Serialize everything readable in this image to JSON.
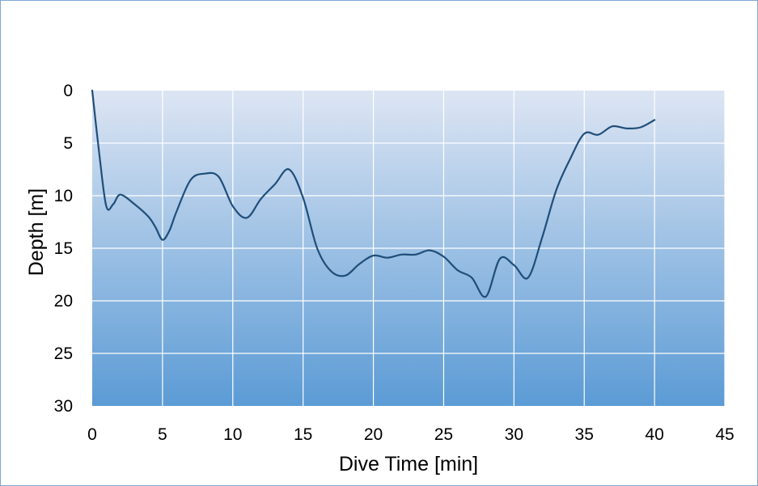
{
  "chart_data": {
    "type": "line",
    "title": "",
    "xlabel": "Dive Time [min]",
    "ylabel": "Depth [m]",
    "xlim": [
      0,
      45
    ],
    "ylim": [
      0,
      30
    ],
    "y_inverted": true,
    "x_ticks": [
      "0",
      "5",
      "10",
      "15",
      "20",
      "25",
      "30",
      "35",
      "40",
      "45"
    ],
    "y_ticks": [
      "0",
      "5",
      "10",
      "15",
      "20",
      "25",
      "30"
    ],
    "grid": true,
    "legend": "none",
    "background": "vertical gradient, light blue at top to medium blue at bottom",
    "colors": {
      "line": "#1f4e79",
      "grid": "#ffffff",
      "gradient_top": "#dde5f3",
      "gradient_bottom": "#5b9bd5",
      "frame_border": "#7fa7d3"
    },
    "series": [
      {
        "x": [
          0,
          0.5,
          1,
          1.5,
          2,
          3,
          4,
          4.5,
          5,
          5.5,
          6,
          7,
          8,
          9,
          10,
          11,
          12,
          13,
          14,
          15,
          16,
          17,
          18,
          19,
          20,
          21,
          22,
          23,
          24,
          25,
          26,
          27,
          28,
          29,
          30,
          31,
          32,
          33,
          34,
          35,
          36,
          37,
          38,
          39,
          40
        ],
        "values": [
          0,
          6,
          11,
          10.8,
          9.9,
          10.8,
          12,
          13,
          14.2,
          13.3,
          11.5,
          8.5,
          7.9,
          8.2,
          11,
          12.1,
          10.3,
          8.9,
          7.5,
          10.2,
          15,
          17.2,
          17.6,
          16.5,
          15.7,
          15.9,
          15.6,
          15.6,
          15.2,
          15.8,
          17.1,
          17.8,
          19.6,
          16,
          16.6,
          17.8,
          14,
          9.5,
          6.5,
          4.1,
          4.2,
          3.4,
          3.6,
          3.5,
          2.8
        ]
      }
    ]
  }
}
